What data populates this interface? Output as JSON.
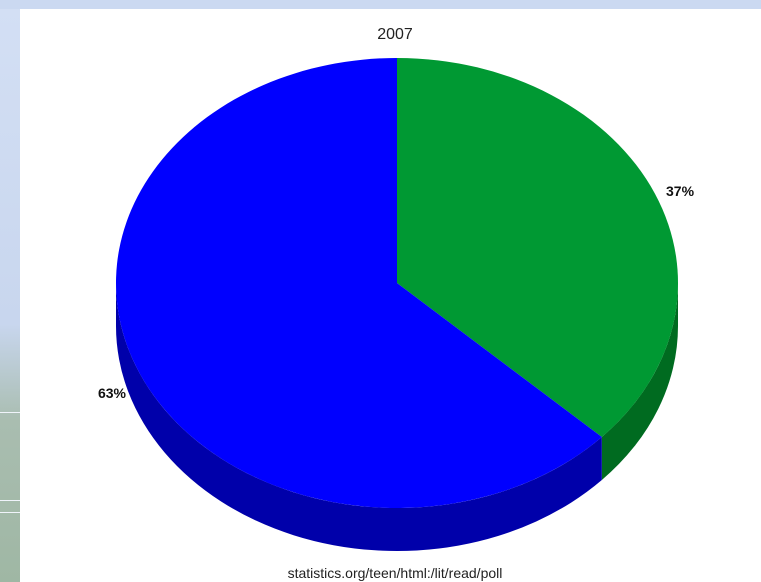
{
  "chart_data": {
    "type": "pie",
    "title": "2007",
    "slices": [
      {
        "label": "37%",
        "value": 37,
        "color": "#009933",
        "side_color": "#006b20"
      },
      {
        "label": "63%",
        "value": 63,
        "color": "#0000ff",
        "side_color": "#0000aa"
      }
    ],
    "start": "12 o'clock, clockwise",
    "style": "3D extruded pie",
    "source": "statistics.org/teen/html:/lit/read/poll"
  }
}
